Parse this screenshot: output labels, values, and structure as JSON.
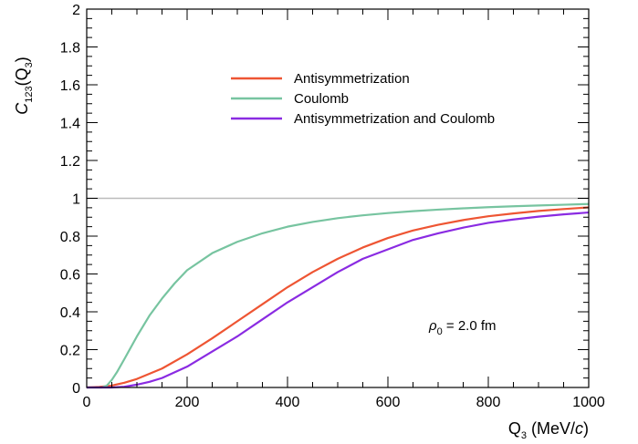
{
  "chart_data": {
    "type": "line",
    "title": "",
    "xlabel": {
      "base": "Q",
      "sub": "3",
      "unit_open": " (MeV/",
      "unit_italic": "c",
      "unit_close": ")"
    },
    "ylabel": {
      "base": "C",
      "sub": "123",
      "open": "(Q",
      "arg_sub": "3",
      "close": ")"
    },
    "xlim": [
      0,
      1000
    ],
    "ylim": [
      0,
      2
    ],
    "xticks": [
      0,
      200,
      400,
      600,
      800,
      1000
    ],
    "yticks": [
      0,
      0.2,
      0.4,
      0.6,
      0.8,
      1,
      1.2,
      1.4,
      1.6,
      1.8,
      2
    ],
    "grid": false,
    "reference_line": {
      "y": 1,
      "color": "#bbbbbb"
    },
    "legend_position": "top-center",
    "annotation": {
      "symbol": "ρ",
      "sub": "0",
      "text": " = 2.0 fm"
    },
    "series": [
      {
        "name": "Antisymmetrization",
        "color": "#ee5533",
        "x": [
          0,
          25,
          50,
          75,
          100,
          150,
          200,
          250,
          300,
          350,
          400,
          450,
          500,
          550,
          600,
          650,
          700,
          750,
          800,
          850,
          900,
          950,
          1000
        ],
        "y": [
          0,
          0.003,
          0.01,
          0.025,
          0.045,
          0.1,
          0.175,
          0.26,
          0.35,
          0.44,
          0.53,
          0.61,
          0.68,
          0.74,
          0.79,
          0.83,
          0.86,
          0.885,
          0.905,
          0.92,
          0.933,
          0.943,
          0.952
        ]
      },
      {
        "name": "Coulomb",
        "color": "#77c4a0",
        "x": [
          0,
          30,
          40,
          50,
          60,
          75,
          100,
          125,
          150,
          175,
          200,
          250,
          300,
          350,
          400,
          450,
          500,
          550,
          600,
          650,
          700,
          750,
          800,
          850,
          900,
          950,
          1000
        ],
        "y": [
          0,
          0,
          0.01,
          0.04,
          0.08,
          0.15,
          0.27,
          0.38,
          0.47,
          0.55,
          0.62,
          0.71,
          0.77,
          0.815,
          0.85,
          0.875,
          0.895,
          0.91,
          0.922,
          0.932,
          0.94,
          0.947,
          0.953,
          0.958,
          0.962,
          0.966,
          0.97
        ]
      },
      {
        "name": "Antisymmetrization and Coulomb",
        "color": "#8a2be2",
        "x": [
          0,
          50,
          75,
          100,
          125,
          150,
          200,
          250,
          300,
          350,
          400,
          450,
          500,
          550,
          600,
          650,
          700,
          750,
          800,
          850,
          900,
          950,
          1000
        ],
        "y": [
          0,
          0,
          0.004,
          0.015,
          0.03,
          0.05,
          0.11,
          0.19,
          0.27,
          0.36,
          0.45,
          0.53,
          0.61,
          0.68,
          0.73,
          0.78,
          0.815,
          0.845,
          0.87,
          0.888,
          0.903,
          0.915,
          0.925
        ]
      }
    ]
  }
}
